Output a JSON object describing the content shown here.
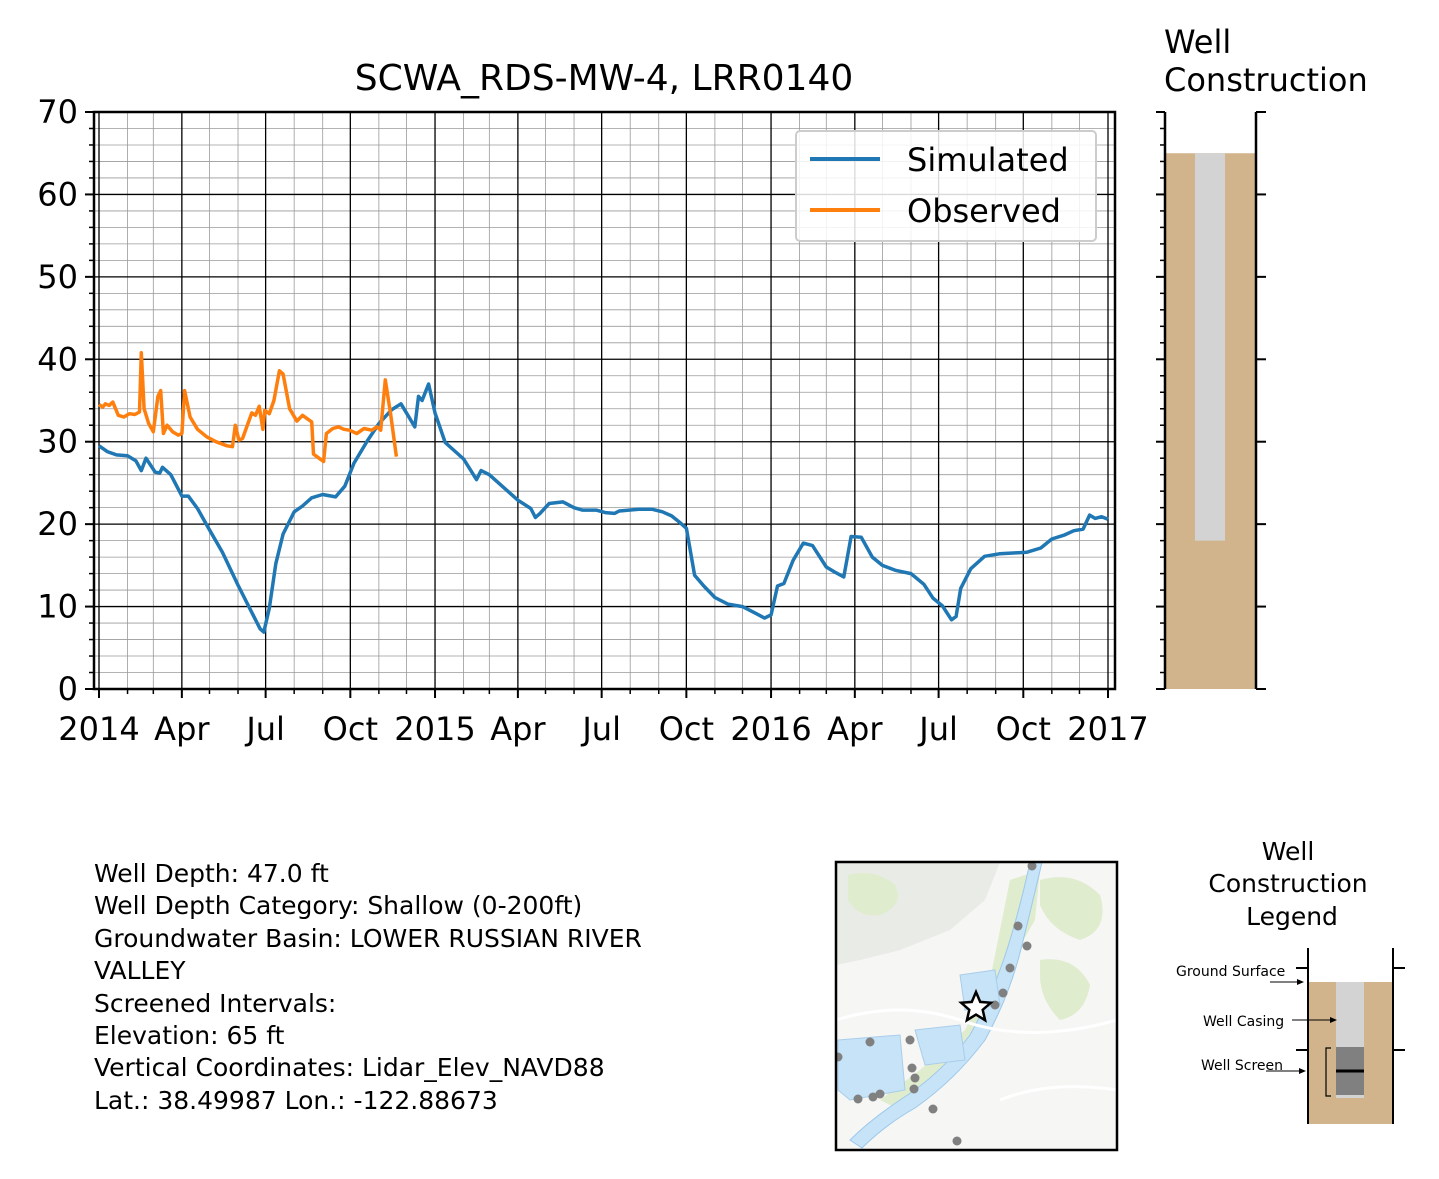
{
  "chart_data": [
    {
      "type": "line",
      "title": "SCWA_RDS-MW-4, LRR0140",
      "xlabel": "",
      "ylabel": "",
      "ylim": [
        0,
        70
      ],
      "yticks": [
        0,
        10,
        20,
        30,
        40,
        50,
        60,
        70
      ],
      "xlim": [
        "2014-01-01",
        "2017-01-01"
      ],
      "xtick_labels": [
        "2014",
        "Apr",
        "Jul",
        "Oct",
        "2015",
        "Apr",
        "Jul",
        "Oct",
        "2016",
        "Apr",
        "Jul",
        "Oct",
        "2017"
      ],
      "grid": true,
      "legend_position": "top-right",
      "series": [
        {
          "name": "Simulated",
          "color": "#1f77b4",
          "points": [
            [
              "2014-01-01",
              29.5
            ],
            [
              "2014-01-10",
              28.8
            ],
            [
              "2014-01-20",
              28.4
            ],
            [
              "2014-02-01",
              28.3
            ],
            [
              "2014-02-10",
              27.7
            ],
            [
              "2014-02-16",
              26.5
            ],
            [
              "2014-02-21",
              28.0
            ],
            [
              "2014-03-03",
              26.3
            ],
            [
              "2014-03-08",
              26.2
            ],
            [
              "2014-03-11",
              26.9
            ],
            [
              "2014-03-20",
              26.0
            ],
            [
              "2014-04-01",
              23.4
            ],
            [
              "2014-04-08",
              23.4
            ],
            [
              "2014-04-18",
              21.9
            ],
            [
              "2014-05-01",
              19.3
            ],
            [
              "2014-05-15",
              16.6
            ],
            [
              "2014-06-01",
              12.6
            ],
            [
              "2014-06-15",
              9.5
            ],
            [
              "2014-06-25",
              7.3
            ],
            [
              "2014-06-29",
              6.9
            ],
            [
              "2014-07-05",
              9.8
            ],
            [
              "2014-07-12",
              15.2
            ],
            [
              "2014-07-20",
              18.8
            ],
            [
              "2014-08-01",
              21.5
            ],
            [
              "2014-08-10",
              22.2
            ],
            [
              "2014-08-20",
              23.2
            ],
            [
              "2014-09-01",
              23.6
            ],
            [
              "2014-09-15",
              23.3
            ],
            [
              "2014-09-25",
              24.6
            ],
            [
              "2014-10-05",
              27.4
            ],
            [
              "2014-10-20",
              30.2
            ],
            [
              "2014-11-01",
              32.2
            ],
            [
              "2014-11-15",
              33.9
            ],
            [
              "2014-11-25",
              34.6
            ],
            [
              "2014-12-10",
              31.8
            ],
            [
              "2014-12-14",
              35.5
            ],
            [
              "2014-12-18",
              35.0
            ],
            [
              "2014-12-25",
              37.0
            ],
            [
              "2015-01-01",
              33.5
            ],
            [
              "2015-01-12",
              29.9
            ],
            [
              "2015-02-01",
              27.9
            ],
            [
              "2015-02-15",
              25.4
            ],
            [
              "2015-02-20",
              26.5
            ],
            [
              "2015-03-01",
              26.0
            ],
            [
              "2015-03-20",
              24.1
            ],
            [
              "2015-04-01",
              22.9
            ],
            [
              "2015-04-15",
              21.9
            ],
            [
              "2015-04-20",
              20.8
            ],
            [
              "2015-04-25",
              21.3
            ],
            [
              "2015-05-05",
              22.5
            ],
            [
              "2015-05-20",
              22.7
            ],
            [
              "2015-06-01",
              22.0
            ],
            [
              "2015-06-10",
              21.7
            ],
            [
              "2015-06-25",
              21.7
            ],
            [
              "2015-07-05",
              21.4
            ],
            [
              "2015-07-15",
              21.3
            ],
            [
              "2015-07-20",
              21.6
            ],
            [
              "2015-08-10",
              21.8
            ],
            [
              "2015-08-25",
              21.8
            ],
            [
              "2015-09-05",
              21.5
            ],
            [
              "2015-09-15",
              21.0
            ],
            [
              "2015-09-25",
              20.1
            ],
            [
              "2015-10-01",
              19.5
            ],
            [
              "2015-10-10",
              13.8
            ],
            [
              "2015-10-20",
              12.5
            ],
            [
              "2015-11-01",
              11.1
            ],
            [
              "2015-11-15",
              10.3
            ],
            [
              "2015-12-01",
              10.0
            ],
            [
              "2015-12-15",
              9.2
            ],
            [
              "2015-12-25",
              8.6
            ],
            [
              "2016-01-01",
              9.0
            ],
            [
              "2016-01-08",
              12.5
            ],
            [
              "2016-01-15",
              12.8
            ],
            [
              "2016-01-25",
              15.6
            ],
            [
              "2016-02-05",
              17.7
            ],
            [
              "2016-02-15",
              17.4
            ],
            [
              "2016-03-01",
              14.8
            ],
            [
              "2016-03-10",
              14.2
            ],
            [
              "2016-03-20",
              13.6
            ],
            [
              "2016-03-28",
              18.5
            ],
            [
              "2016-04-08",
              18.4
            ],
            [
              "2016-04-20",
              16.0
            ],
            [
              "2016-05-01",
              15.0
            ],
            [
              "2016-05-15",
              14.4
            ],
            [
              "2016-06-01",
              14.0
            ],
            [
              "2016-06-15",
              12.7
            ],
            [
              "2016-06-25",
              11.0
            ],
            [
              "2016-07-05",
              10.1
            ],
            [
              "2016-07-15",
              8.4
            ],
            [
              "2016-07-20",
              8.8
            ],
            [
              "2016-07-25",
              12.2
            ],
            [
              "2016-08-05",
              14.6
            ],
            [
              "2016-08-20",
              16.1
            ],
            [
              "2016-09-05",
              16.4
            ],
            [
              "2016-09-20",
              16.5
            ],
            [
              "2016-10-05",
              16.6
            ],
            [
              "2016-10-20",
              17.1
            ],
            [
              "2016-11-01",
              18.2
            ],
            [
              "2016-11-15",
              18.7
            ],
            [
              "2016-11-25",
              19.2
            ],
            [
              "2016-12-05",
              19.4
            ],
            [
              "2016-12-12",
              21.1
            ],
            [
              "2016-12-18",
              20.7
            ],
            [
              "2016-12-25",
              20.9
            ],
            [
              "2017-01-01",
              20.6
            ]
          ]
        },
        {
          "name": "Observed",
          "color": "#ff7f0e",
          "points": [
            [
              "2014-01-01",
              34.5
            ],
            [
              "2014-01-05",
              34.2
            ],
            [
              "2014-01-08",
              34.6
            ],
            [
              "2014-01-12",
              34.4
            ],
            [
              "2014-01-16",
              34.8
            ],
            [
              "2014-01-22",
              33.2
            ],
            [
              "2014-01-28",
              33.0
            ],
            [
              "2014-02-03",
              33.4
            ],
            [
              "2014-02-09",
              33.3
            ],
            [
              "2014-02-14",
              33.6
            ],
            [
              "2014-02-16",
              40.8
            ],
            [
              "2014-02-19",
              34.0
            ],
            [
              "2014-02-24",
              32.2
            ],
            [
              "2014-03-01",
              31.2
            ],
            [
              "2014-03-06",
              35.5
            ],
            [
              "2014-03-09",
              36.2
            ],
            [
              "2014-03-12",
              31.0
            ],
            [
              "2014-03-16",
              32.0
            ],
            [
              "2014-03-22",
              31.2
            ],
            [
              "2014-03-28",
              30.8
            ],
            [
              "2014-04-01",
              31.0
            ],
            [
              "2014-04-04",
              36.2
            ],
            [
              "2014-04-10",
              33.0
            ],
            [
              "2014-04-18",
              31.5
            ],
            [
              "2014-04-28",
              30.6
            ],
            [
              "2014-05-08",
              30.0
            ],
            [
              "2014-05-20",
              29.5
            ],
            [
              "2014-05-26",
              29.4
            ],
            [
              "2014-05-29",
              32.0
            ],
            [
              "2014-06-02",
              30.2
            ],
            [
              "2014-06-06",
              30.4
            ],
            [
              "2014-06-16",
              33.5
            ],
            [
              "2014-06-20",
              33.2
            ],
            [
              "2014-06-24",
              34.3
            ],
            [
              "2014-06-28",
              31.5
            ],
            [
              "2014-06-30",
              33.8
            ],
            [
              "2014-07-05",
              33.4
            ],
            [
              "2014-07-10",
              35.0
            ],
            [
              "2014-07-16",
              38.6
            ],
            [
              "2014-07-20",
              38.2
            ],
            [
              "2014-07-27",
              34.0
            ],
            [
              "2014-08-04",
              32.5
            ],
            [
              "2014-08-10",
              33.2
            ],
            [
              "2014-08-20",
              32.4
            ],
            [
              "2014-08-22",
              28.5
            ],
            [
              "2014-08-28",
              28.0
            ],
            [
              "2014-09-02",
              27.6
            ],
            [
              "2014-09-05",
              31.0
            ],
            [
              "2014-09-12",
              31.6
            ],
            [
              "2014-09-18",
              31.8
            ],
            [
              "2014-09-24",
              31.5
            ],
            [
              "2014-09-30",
              31.4
            ],
            [
              "2014-10-08",
              31.0
            ],
            [
              "2014-10-16",
              31.6
            ],
            [
              "2014-10-24",
              31.4
            ],
            [
              "2014-10-30",
              31.8
            ],
            [
              "2014-11-03",
              31.4
            ],
            [
              "2014-11-08",
              37.5
            ],
            [
              "2014-11-14",
              33.2
            ],
            [
              "2014-11-20",
              28.2
            ]
          ]
        }
      ]
    },
    {
      "type": "well-construction",
      "title": "Well\nConstruction",
      "ylim": [
        0,
        70
      ],
      "ground_surface": 65,
      "casing_bottom": 18,
      "colors": {
        "soil": "#d2b48c",
        "casing": "#d3d3d3"
      }
    }
  ],
  "info": {
    "lines": [
      "Well Depth: 47.0 ft",
      "Well Depth Category: Shallow (0-200ft)",
      "Groundwater Basin: LOWER RUSSIAN RIVER VALLEY",
      "Screened Intervals:",
      "Elevation: 65 ft",
      "Vertical Coordinates: Lidar_Elev_NAVD88",
      "Lat.: 38.49987 Lon.: -122.88673"
    ]
  },
  "legend_diagram": {
    "title_lines": [
      "Well",
      "Construction",
      "Legend"
    ],
    "labels": {
      "ground": "Ground Surface",
      "casing": "Well Casing",
      "screen": "Well Screen"
    },
    "colors": {
      "soil": "#d2b48c",
      "casing": "#d3d3d3",
      "screen": "#808080"
    }
  },
  "map": {
    "marker": "star-icon",
    "colors": {
      "water": "#c6e3f8",
      "vegetation": "#dfeccd",
      "wells": "#808080"
    }
  }
}
